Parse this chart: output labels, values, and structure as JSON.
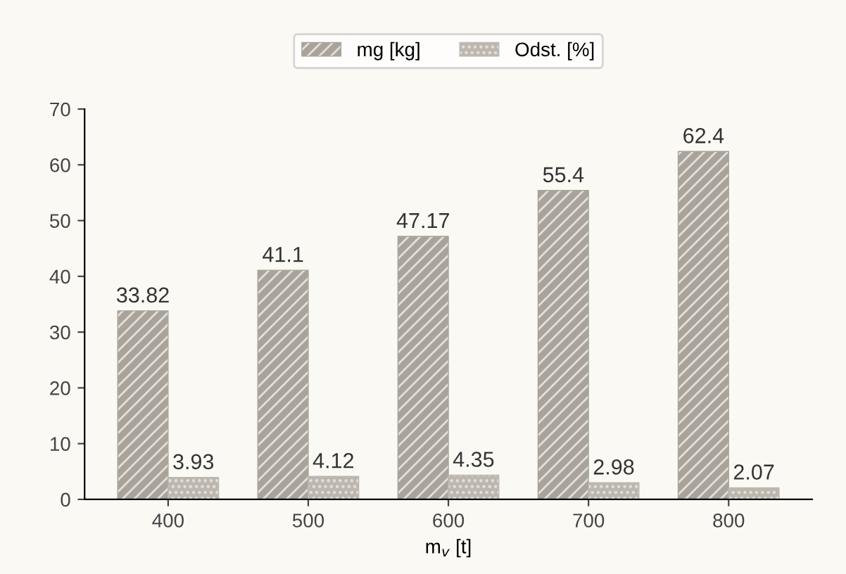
{
  "chart_data": {
    "type": "bar",
    "categories": [
      "400",
      "500",
      "600",
      "700",
      "800"
    ],
    "xlabel": "m$_{v}$ [t]",
    "series": [
      {
        "name": "mg [kg]",
        "color": "#a8a49c",
        "values": [
          33.82,
          41.1,
          47.17,
          55.4,
          62.4
        ]
      },
      {
        "name": "Odst. [%]",
        "color": "#bcb8b0",
        "values": [
          3.93,
          4.12,
          4.35,
          2.98,
          2.07
        ]
      }
    ],
    "ylim": [
      0,
      70
    ],
    "yticks": [
      0,
      10,
      20,
      30,
      40,
      50,
      60,
      70
    ],
    "data_labels": true,
    "legend": "top",
    "grid": false
  }
}
